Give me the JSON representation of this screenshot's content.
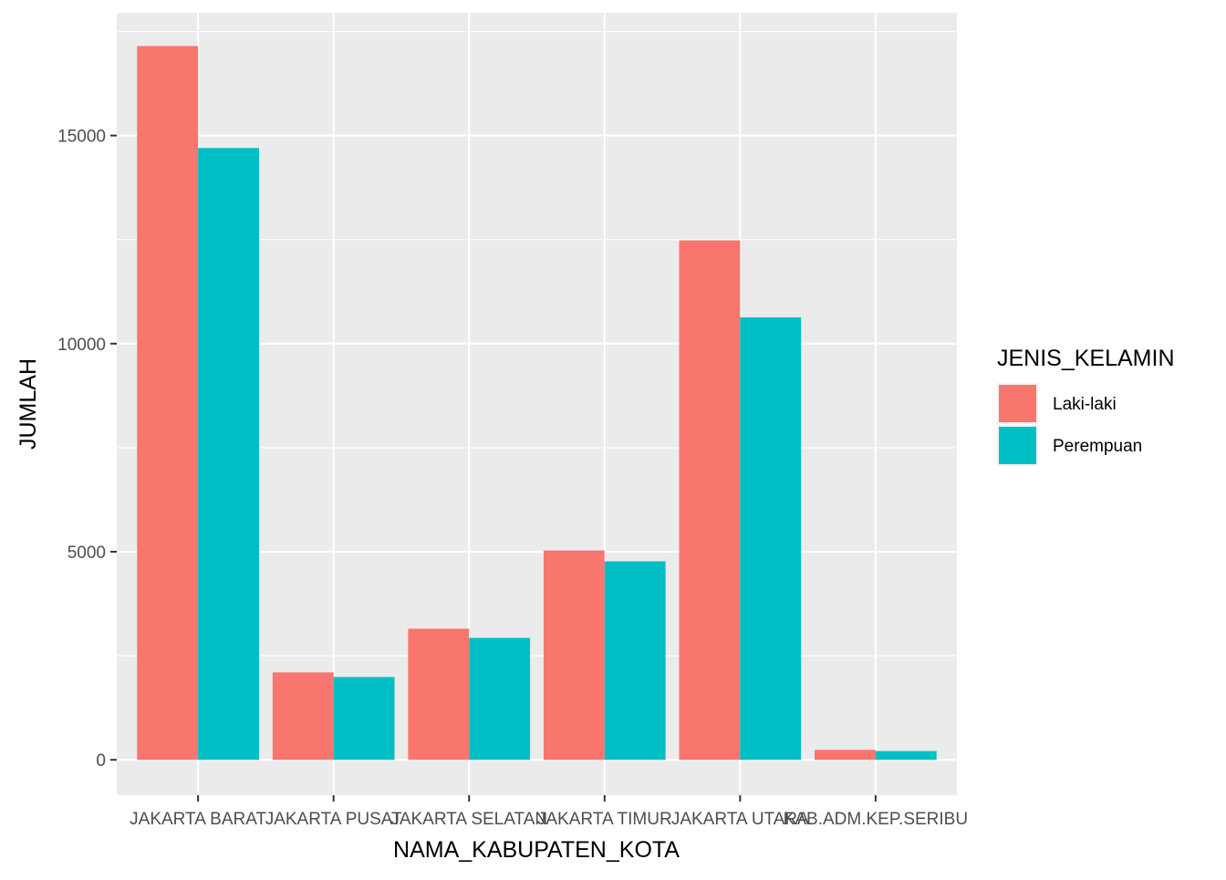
{
  "chart_data": {
    "type": "bar",
    "categories": [
      "JAKARTA BARAT",
      "JAKARTA PUSAT",
      "JAKARTA SELATAN",
      "JAKARTA TIMUR",
      "JAKARTA UTARA",
      "KAB.ADM.KEP.SERIBU"
    ],
    "series": [
      {
        "name": "Laki-laki",
        "values": [
          17150,
          2100,
          3150,
          5030,
          12480,
          240
        ],
        "color": "#F8766D"
      },
      {
        "name": "Perempuan",
        "values": [
          14700,
          1990,
          2930,
          4770,
          10630,
          210
        ],
        "color": "#00BFC4"
      }
    ],
    "xlabel": "NAMA_KABUPATEN_KOTA",
    "ylabel": "JUMLAH",
    "ylim": [
      -850,
      17950
    ],
    "yticks": [
      0,
      5000,
      10000,
      15000
    ],
    "yticks_minor": [
      2500,
      7500,
      12500,
      17500
    ],
    "legend_title": "JENIS_KELAMIN",
    "legend_position": "right",
    "grid": true,
    "panel_color": "#EBEBEB",
    "grid_color": "#FFFFFF"
  }
}
